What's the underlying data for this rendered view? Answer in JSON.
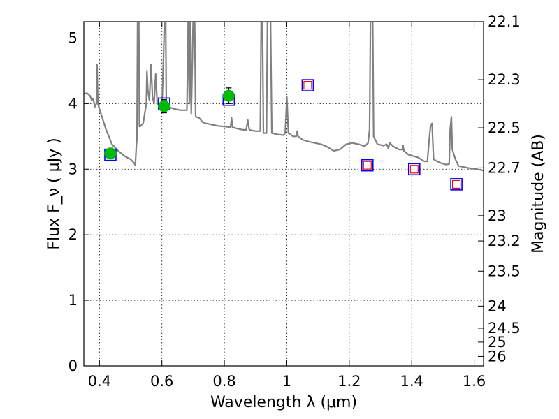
{
  "chart_data": {
    "type": "scatter",
    "xlabel": "Wavelength  λ (μm)",
    "ylabel": "Flux  F_ν  ( μJy )",
    "y2label": "Magnitude (AB)",
    "xlim": [
      0.35,
      1.63
    ],
    "ylim": [
      0,
      5.25
    ],
    "grid": true,
    "x_ticks": [
      {
        "value": 0.4,
        "label": "0.4"
      },
      {
        "value": 0.6,
        "label": "0.6"
      },
      {
        "value": 0.8,
        "label": "0.8"
      },
      {
        "value": 1.0,
        "label": "1"
      },
      {
        "value": 1.2,
        "label": "1.2"
      },
      {
        "value": 1.4,
        "label": "1.4"
      },
      {
        "value": 1.6,
        "label": "1.6"
      }
    ],
    "y_ticks": [
      {
        "value": 0,
        "label": "0"
      },
      {
        "value": 1,
        "label": "1"
      },
      {
        "value": 2,
        "label": "2"
      },
      {
        "value": 3,
        "label": "3"
      },
      {
        "value": 4,
        "label": "4"
      },
      {
        "value": 5,
        "label": "5"
      }
    ],
    "y2_ticks": [
      {
        "value": 22.1,
        "label": "22.1"
      },
      {
        "value": 22.3,
        "label": "22.3"
      },
      {
        "value": 22.5,
        "label": "22.5"
      },
      {
        "value": 22.7,
        "label": "22.7"
      },
      {
        "value": 23.0,
        "label": "23"
      },
      {
        "value": 23.2,
        "label": "23.2"
      },
      {
        "value": 23.5,
        "label": "23.5"
      },
      {
        "value": 24.0,
        "label": "24"
      },
      {
        "value": 24.5,
        "label": "24.5"
      },
      {
        "value": 25.0,
        "label": "25"
      },
      {
        "value": 26.0,
        "label": "26"
      }
    ],
    "series": [
      {
        "kind": "line",
        "color": "#808080",
        "points": [
          [
            0.35,
            4.15
          ],
          [
            0.36,
            4.16
          ],
          [
            0.37,
            4.12
          ],
          [
            0.375,
            4.05
          ],
          [
            0.38,
            4.08
          ],
          [
            0.385,
            3.95
          ],
          [
            0.39,
            4.0
          ],
          [
            0.392,
            4.6
          ],
          [
            0.395,
            4.0
          ],
          [
            0.4,
            3.92
          ],
          [
            0.42,
            3.62
          ],
          [
            0.44,
            3.38
          ],
          [
            0.46,
            3.28
          ],
          [
            0.48,
            3.2
          ],
          [
            0.5,
            3.15
          ],
          [
            0.51,
            3.1
          ],
          [
            0.515,
            3.06
          ],
          [
            0.518,
            3.35
          ],
          [
            0.52,
            3.45
          ],
          [
            0.522,
            5.25
          ],
          [
            0.526,
            5.25
          ],
          [
            0.528,
            3.65
          ],
          [
            0.53,
            3.65
          ],
          [
            0.54,
            3.7
          ],
          [
            0.55,
            4.0
          ],
          [
            0.552,
            4.5
          ],
          [
            0.555,
            4.2
          ],
          [
            0.56,
            4.05
          ],
          [
            0.565,
            4.6
          ],
          [
            0.57,
            4.1
          ],
          [
            0.575,
            4.0
          ],
          [
            0.58,
            4.45
          ],
          [
            0.585,
            4.0
          ],
          [
            0.59,
            3.98
          ],
          [
            0.6,
            3.92
          ],
          [
            0.605,
            4.7
          ],
          [
            0.608,
            5.25
          ],
          [
            0.612,
            5.25
          ],
          [
            0.614,
            4.0
          ],
          [
            0.62,
            3.95
          ],
          [
            0.64,
            3.92
          ],
          [
            0.66,
            3.9
          ],
          [
            0.68,
            3.9
          ],
          [
            0.684,
            5.25
          ],
          [
            0.688,
            4.0
          ],
          [
            0.69,
            5.25
          ],
          [
            0.694,
            3.85
          ],
          [
            0.7,
            5.25
          ],
          [
            0.705,
            5.25
          ],
          [
            0.708,
            3.8
          ],
          [
            0.72,
            3.78
          ],
          [
            0.73,
            3.72
          ],
          [
            0.74,
            3.7
          ],
          [
            0.76,
            3.68
          ],
          [
            0.78,
            3.66
          ],
          [
            0.8,
            3.65
          ],
          [
            0.82,
            3.64
          ],
          [
            0.823,
            3.78
          ],
          [
            0.826,
            3.64
          ],
          [
            0.84,
            3.62
          ],
          [
            0.86,
            3.6
          ],
          [
            0.87,
            3.6
          ],
          [
            0.875,
            3.75
          ],
          [
            0.88,
            3.6
          ],
          [
            0.9,
            3.58
          ],
          [
            0.915,
            3.58
          ],
          [
            0.918,
            5.25
          ],
          [
            0.922,
            5.25
          ],
          [
            0.925,
            3.55
          ],
          [
            0.935,
            3.55
          ],
          [
            0.938,
            5.25
          ],
          [
            0.948,
            5.25
          ],
          [
            0.952,
            3.55
          ],
          [
            0.97,
            3.53
          ],
          [
            0.99,
            3.52
          ],
          [
            0.995,
            3.55
          ],
          [
            1.0,
            4.1
          ],
          [
            1.005,
            3.55
          ],
          [
            1.02,
            3.5
          ],
          [
            1.03,
            3.5
          ],
          [
            1.033,
            3.58
          ],
          [
            1.036,
            3.5
          ],
          [
            1.05,
            3.45
          ],
          [
            1.07,
            3.42
          ],
          [
            1.09,
            3.4
          ],
          [
            1.11,
            3.38
          ],
          [
            1.13,
            3.34
          ],
          [
            1.15,
            3.28
          ],
          [
            1.17,
            3.3
          ],
          [
            1.19,
            3.38
          ],
          [
            1.21,
            3.4
          ],
          [
            1.23,
            3.38
          ],
          [
            1.25,
            3.35
          ],
          [
            1.26,
            3.4
          ],
          [
            1.265,
            3.6
          ],
          [
            1.268,
            5.25
          ],
          [
            1.275,
            5.25
          ],
          [
            1.278,
            3.5
          ],
          [
            1.29,
            3.38
          ],
          [
            1.31,
            3.36
          ],
          [
            1.32,
            3.38
          ],
          [
            1.325,
            3.32
          ],
          [
            1.33,
            3.4
          ],
          [
            1.34,
            3.35
          ],
          [
            1.36,
            3.3
          ],
          [
            1.37,
            3.3
          ],
          [
            1.372,
            3.36
          ],
          [
            1.375,
            3.28
          ],
          [
            1.39,
            3.22
          ],
          [
            1.42,
            3.18
          ],
          [
            1.44,
            3.12
          ],
          [
            1.45,
            3.12
          ],
          [
            1.455,
            3.4
          ],
          [
            1.46,
            3.65
          ],
          [
            1.465,
            3.7
          ],
          [
            1.47,
            3.15
          ],
          [
            1.49,
            3.1
          ],
          [
            1.51,
            3.07
          ],
          [
            1.52,
            3.08
          ],
          [
            1.523,
            3.6
          ],
          [
            1.527,
            3.8
          ],
          [
            1.53,
            3.3
          ],
          [
            1.54,
            3.15
          ],
          [
            1.55,
            3.05
          ],
          [
            1.57,
            3.03
          ],
          [
            1.59,
            3.01
          ],
          [
            1.61,
            3.0
          ],
          [
            1.63,
            2.98
          ]
        ]
      },
      {
        "kind": "markers",
        "marker": "square",
        "edge_color": "#0000ff",
        "points": [
          [
            0.435,
            3.22
          ],
          [
            0.607,
            4.0
          ],
          [
            0.814,
            4.06
          ]
        ]
      },
      {
        "kind": "markers",
        "marker": "circle",
        "fill_color": "#00bb00",
        "points": [
          {
            "x": 0.435,
            "y": 3.24,
            "yerr": 0.08
          },
          {
            "x": 0.607,
            "y": 3.96,
            "yerr": 0.1
          },
          {
            "x": 0.814,
            "y": 4.12,
            "yerr": 0.12
          }
        ]
      },
      {
        "kind": "markers",
        "marker": "nested-square",
        "edge_color": "#0000ff",
        "inner_color": "#ff0000",
        "points": [
          [
            1.067,
            4.28
          ],
          [
            1.258,
            3.06
          ],
          [
            1.408,
            3.0
          ],
          [
            1.543,
            2.77
          ]
        ]
      }
    ]
  }
}
